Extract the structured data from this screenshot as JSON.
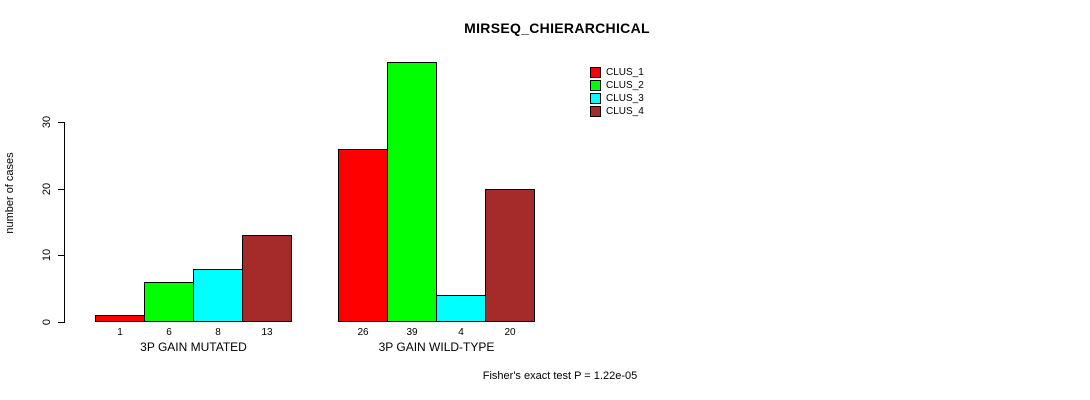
{
  "title": "MIRSEQ_CHIERARCHICAL",
  "footer": {
    "annotation": "Fisher's exact test P = 1.22e-05"
  },
  "chart_data": {
    "type": "bar",
    "title": "MIRSEQ_CHIERARCHICAL",
    "ylabel": "number of cases",
    "xlabel": "",
    "ylim": [
      0,
      30
    ],
    "yticks": [
      0,
      10,
      20,
      30
    ],
    "grid": "off",
    "legend_position": "top-right",
    "series_names": [
      "CLUS_1",
      "CLUS_2",
      "CLUS_3",
      "CLUS_4"
    ],
    "series_colors": [
      "#FF0000",
      "#00FF00",
      "#00FFFF",
      "#A52A2A"
    ],
    "groups": [
      {
        "label": "3P GAIN MUTATED",
        "values": [
          1,
          6,
          8,
          13
        ]
      },
      {
        "label": "3P GAIN WILD-TYPE",
        "values": [
          26,
          39,
          4,
          20
        ]
      }
    ],
    "annotation": "Fisher's exact test P = 1.22e-05"
  }
}
